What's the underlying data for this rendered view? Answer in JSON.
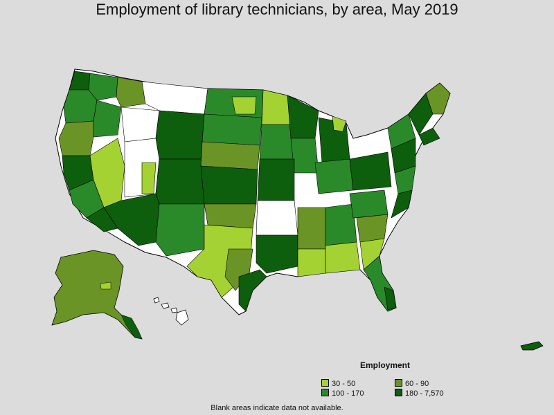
{
  "title": "Employment of library technicians, by area, May 2019",
  "legend": {
    "title": "Employment",
    "items": [
      {
        "label": "30 - 50",
        "color": "#a4d233"
      },
      {
        "label": "60 - 90",
        "color": "#6b9426"
      },
      {
        "label": "100 - 170",
        "color": "#2a8a2a"
      },
      {
        "label": "180 - 7,570",
        "color": "#0d5e0d"
      }
    ]
  },
  "footnote": "Blank areas indicate data not available.",
  "colors": {
    "background": "#dcdcdc",
    "no_data": "#ffffff",
    "border": "#000000"
  }
}
